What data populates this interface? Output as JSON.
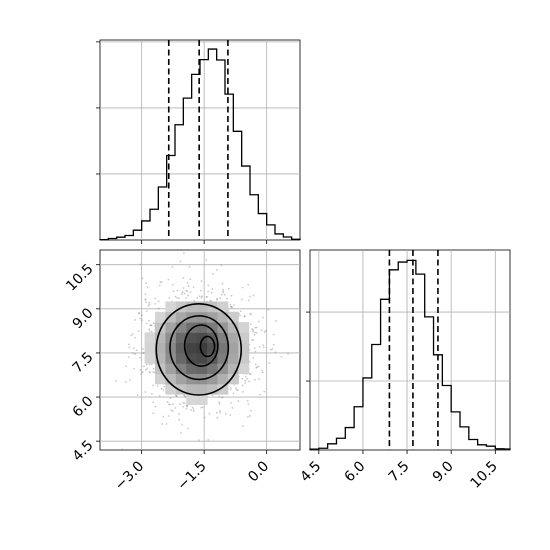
{
  "chart_data": [
    {
      "type": "histogram",
      "panel": "marginal-x",
      "xlim": [
        -4.0,
        0.8
      ],
      "bin_edges": [
        -4.0,
        -3.8,
        -3.6,
        -3.4,
        -3.2,
        -3.0,
        -2.8,
        -2.6,
        -2.4,
        -2.2,
        -2.0,
        -1.8,
        -1.6,
        -1.4,
        -1.2,
        -1.0,
        -0.8,
        -0.6,
        -0.4,
        -0.2,
        0.0,
        0.2,
        0.4,
        0.6,
        0.8
      ],
      "counts": [
        2,
        8,
        15,
        24,
        52,
        101,
        163,
        281,
        448,
        611,
        752,
        878,
        956,
        1012,
        954,
        773,
        576,
        392,
        240,
        140,
        80,
        32,
        16,
        4
      ],
      "quantile_lines": [
        -2.35,
        -1.62,
        -0.93
      ],
      "ylim": [
        0,
        1060
      ],
      "grid": true
    },
    {
      "type": "histogram",
      "panel": "marginal-y",
      "xlim": [
        4.2,
        11.0
      ],
      "xticks": [
        "4.5",
        "6.0",
        "7.5",
        "9.0",
        "10.5"
      ],
      "bin_edges": [
        4.2,
        4.5,
        4.8,
        5.1,
        5.4,
        5.7,
        6.0,
        6.3,
        6.6,
        6.9,
        7.2,
        7.5,
        7.8,
        8.1,
        8.4,
        8.7,
        9.0,
        9.3,
        9.6,
        9.9,
        10.2,
        10.5,
        10.8,
        11.0
      ],
      "counts": [
        5,
        10,
        36,
        68,
        130,
        251,
        418,
        612,
        874,
        1045,
        1090,
        1100,
        1020,
        772,
        552,
        374,
        221,
        134,
        61,
        30,
        22,
        7,
        6
      ],
      "quantile_lines": [
        6.9,
        7.7,
        8.55
      ],
      "ylim": [
        0,
        1160
      ],
      "grid": true
    },
    {
      "type": "scatter",
      "panel": "joint",
      "xlim": [
        -4.0,
        0.8
      ],
      "ylim": [
        4.2,
        11.0
      ],
      "xticks": [
        "−3.0",
        "−1.5",
        "0.0"
      ],
      "yticks": [
        "4.5",
        "6.0",
        "7.5",
        "9.0",
        "10.5"
      ],
      "center": [
        -1.63,
        7.65
      ],
      "density_levels": [
        {
          "x": -1.63,
          "y": 7.62,
          "rx": 1.02,
          "ry": 1.55
        },
        {
          "x": -1.62,
          "y": 7.68,
          "rx": 0.7,
          "ry": 1.08
        },
        {
          "x": -1.57,
          "y": 7.75,
          "rx": 0.4,
          "ry": 0.7
        },
        {
          "x": -1.42,
          "y": 7.72,
          "rx": 0.17,
          "ry": 0.34
        }
      ],
      "grid": true
    }
  ]
}
